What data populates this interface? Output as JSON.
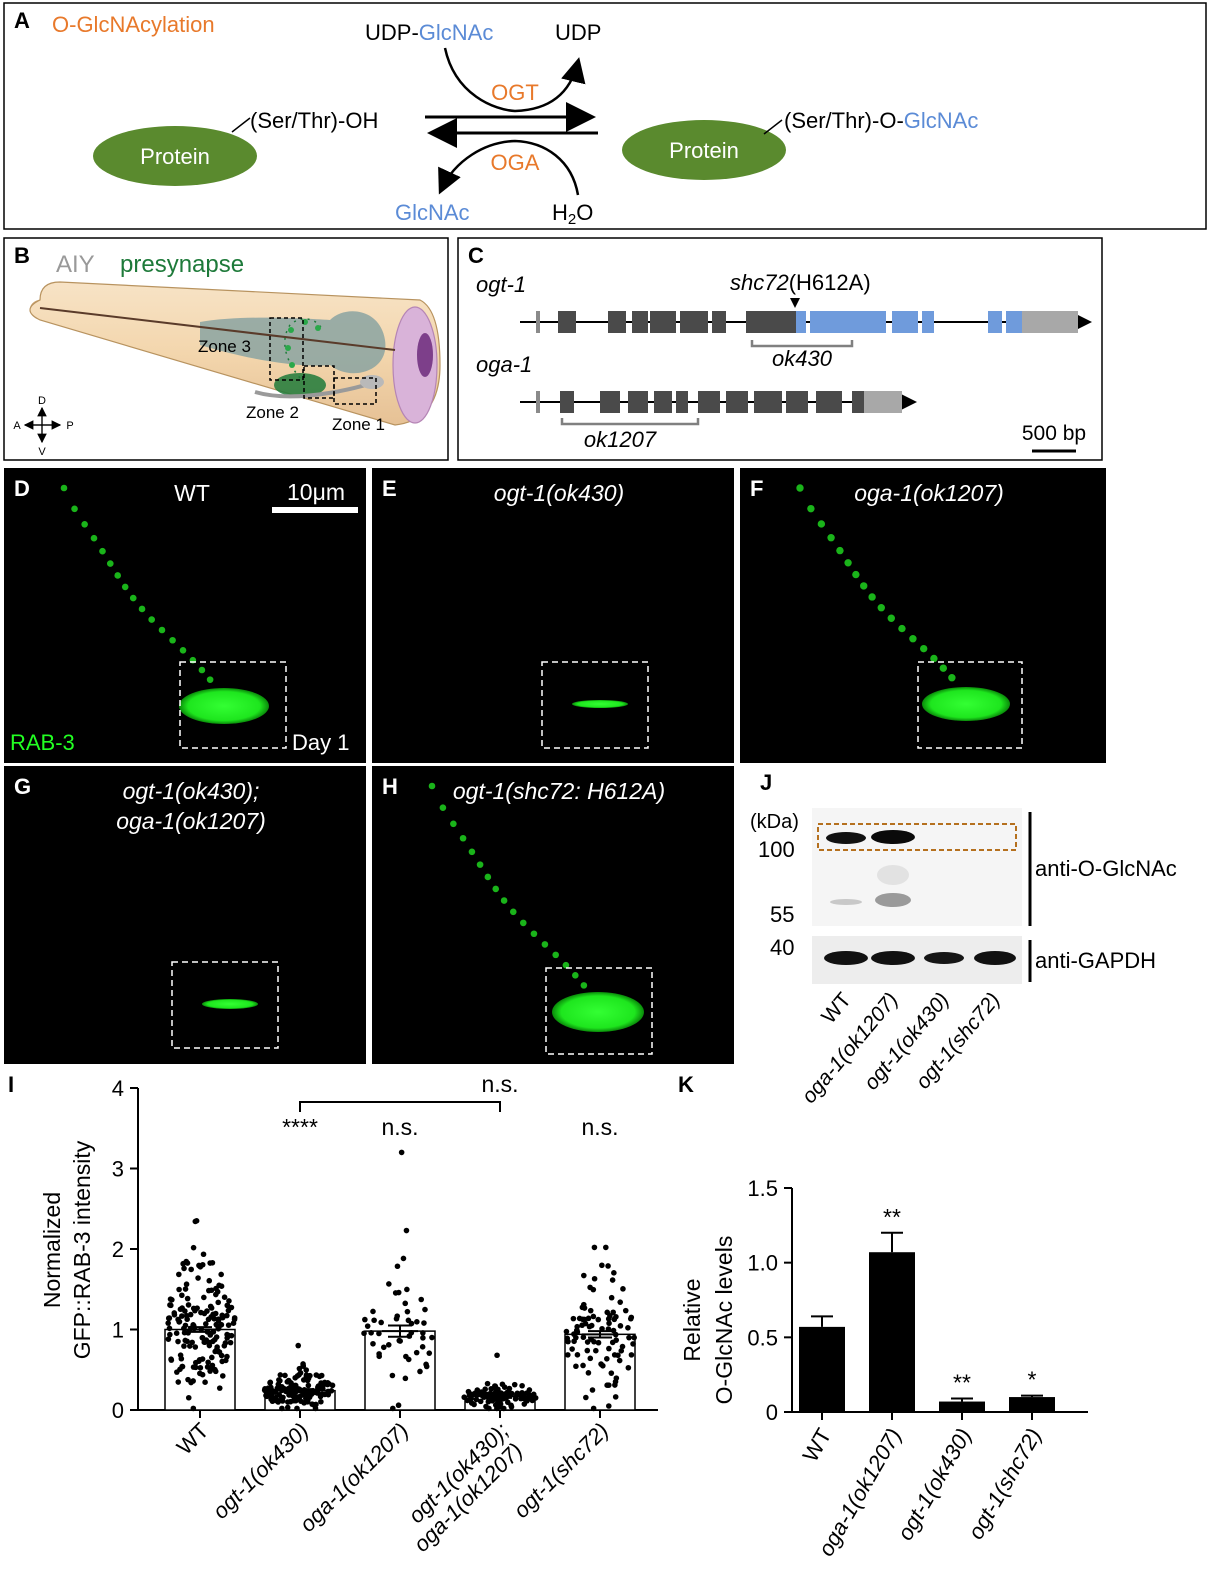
{
  "colors": {
    "orange": "#e8792b",
    "blue": "#5b8bd6",
    "green_label": "#1e7a3a",
    "protein": "#5a8a2e",
    "exon_dark": "#4a4a4a",
    "exon_blue": "#6f9bdc",
    "exon_grey": "#a8a8a8",
    "gfp": "#22ff22",
    "bracket": "#b5701e"
  },
  "panelA": {
    "letter": "A",
    "title": "O-GlcNAcylation",
    "substrate_prefix": "UDP-",
    "substrate_sugar": "GlcNAc",
    "product_udp": "UDP",
    "enzyme_forward": "OGT",
    "enzyme_reverse": "OGA",
    "released_sugar": "GlcNAc",
    "water_h": "H",
    "water_sub": "2",
    "water_o": "O",
    "protein_left": "Protein",
    "protein_right": "Protein",
    "residue_left": "(Ser/Thr)-OH",
    "residue_right_prefix": "(Ser/Thr)-O-",
    "residue_right_sugar": "GlcNAc"
  },
  "panelB": {
    "letter": "B",
    "title_aiy": "AIY",
    "title_presynapse": "presynapse",
    "zone3": "Zone 3",
    "zone2": "Zone 2",
    "zone1": "Zone 1",
    "compass": {
      "d": "D",
      "v": "V",
      "a": "A",
      "p": "P"
    }
  },
  "panelC": {
    "letter": "C",
    "gene1": "ogt-1",
    "gene2": "oga-1",
    "mutation_italic": "shc72",
    "mutation_suffix": "(H612A)",
    "deletion1": "ok430",
    "deletion2": "ok1207",
    "scale": "500 bp"
  },
  "images": [
    {
      "letter": "D",
      "label": "WT",
      "italic": false
    },
    {
      "letter": "E",
      "label": "ogt-1(ok430)",
      "italic": true
    },
    {
      "letter": "F",
      "label": "oga-1(ok1207)",
      "italic": true
    },
    {
      "letter": "G",
      "label": "ogt-1(ok430);",
      "label2": "oga-1(ok1207)",
      "italic": true
    },
    {
      "letter": "H",
      "label": "ogt-1(shc72: H612A)",
      "italic": true
    }
  ],
  "image_extras": {
    "scalebar": "10μm",
    "marker": "RAB-3",
    "day": "Day 1"
  },
  "panelJ": {
    "letter": "J",
    "kda": "(kDa)",
    "mw": [
      "100",
      "55",
      "40"
    ],
    "antibody1": "anti-O-GlcNAc",
    "antibody2": "anti-GAPDH",
    "lanes": [
      "WT",
      "oga-1(ok1207)",
      "ogt-1(ok430)",
      "ogt-1(shc72)"
    ]
  },
  "chart_data": [
    {
      "panel": "I",
      "type": "bar",
      "ylabel_line1": "Normalized",
      "ylabel_line2": "GFP::RAB-3 intensity",
      "ylim": [
        0,
        4
      ],
      "yticks": [
        "0",
        "1",
        "2",
        "3",
        "4"
      ],
      "categories": [
        "WT",
        "ogt-1(ok430)",
        "oga-1(ok1207)",
        "ogt-1(ok430);",
        "ogt-1(shc72)"
      ],
      "category_line2": [
        "",
        "",
        "",
        "oga-1(ok1207)",
        ""
      ],
      "values": [
        1.0,
        0.24,
        0.98,
        0.17,
        0.94
      ],
      "sem": [
        0.03,
        0.02,
        0.07,
        0.02,
        0.04
      ],
      "n_points": [
        170,
        140,
        50,
        90,
        95
      ],
      "max_points": [
        2.35,
        0.8,
        3.2,
        0.68,
        2.02
      ],
      "significance": [
        "",
        "****",
        "n.s.",
        "",
        "n.s."
      ],
      "bracket_label": "n.s."
    },
    {
      "panel": "K",
      "type": "bar",
      "ylabel_line1": "Relative",
      "ylabel_line2": "O-GlcNAc levels",
      "ylim": [
        0,
        1.5
      ],
      "yticks": [
        "0",
        "0.5",
        "1.0",
        "1.5"
      ],
      "categories": [
        "WT",
        "oga-1(ok1207)",
        "ogt-1(ok430)",
        "ogt-1(shc72)"
      ],
      "values": [
        0.57,
        1.07,
        0.07,
        0.1
      ],
      "sem": [
        0.07,
        0.13,
        0.02,
        0.01
      ],
      "significance": [
        "",
        "**",
        "**",
        "*"
      ]
    }
  ],
  "panel_letters": {
    "I": "I",
    "K": "K"
  }
}
